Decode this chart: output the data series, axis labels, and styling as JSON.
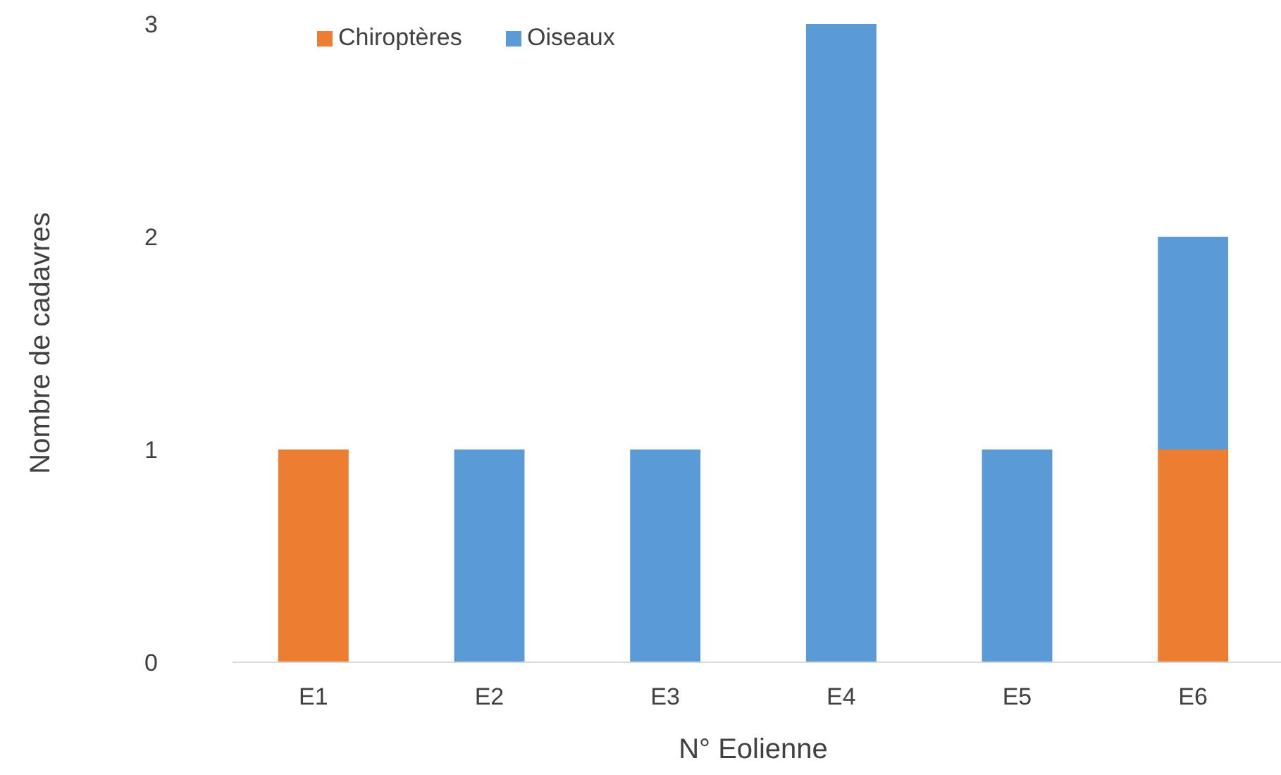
{
  "chart_data": {
    "type": "bar",
    "stacked": true,
    "xlabel": "N° Eolienne",
    "ylabel": "Nombre de cadavres",
    "categories": [
      "E1",
      "E2",
      "E3",
      "E4",
      "E5",
      "E6"
    ],
    "series": [
      {
        "name": "Chiroptères",
        "color": "#ed7d31",
        "values": [
          1,
          0,
          0,
          0,
          0,
          1
        ]
      },
      {
        "name": "Oiseaux",
        "color": "#5b9bd5",
        "values": [
          0,
          1,
          1,
          3,
          1,
          1
        ]
      }
    ],
    "ylim": [
      0,
      3
    ],
    "yticks": [
      0,
      1,
      2,
      3
    ],
    "legend": "top left"
  }
}
